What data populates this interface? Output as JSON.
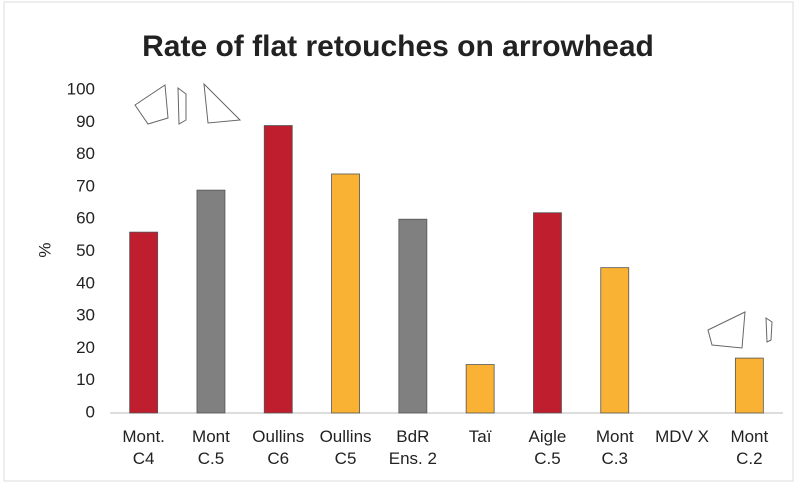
{
  "chart_data": {
    "type": "bar",
    "title": "Rate of flat retouches on arrowhead",
    "y_label": "%",
    "categories": [
      "Mont.\nC4",
      "Mont\nC.5",
      "Oullins\nC6",
      "Oullins\nC5",
      "BdR\nEns. 2",
      "Taï",
      "Aigle\nC.5",
      "Mont\nC.3",
      "MDV X",
      "Mont\nC.2"
    ],
    "values": [
      56,
      69,
      89,
      74,
      60,
      15,
      62,
      45,
      null,
      17
    ],
    "colors": [
      "#be1e2d",
      "#808080",
      "#be1e2d",
      "#f9b233",
      "#808080",
      "#f9b233",
      "#be1e2d",
      "#f9b233",
      "#f9b233",
      "#f9b233"
    ],
    "ylim": [
      0,
      100
    ],
    "yticks": [
      0,
      10,
      20,
      30,
      40,
      50,
      60,
      70,
      80,
      90,
      100
    ],
    "grid": false
  }
}
